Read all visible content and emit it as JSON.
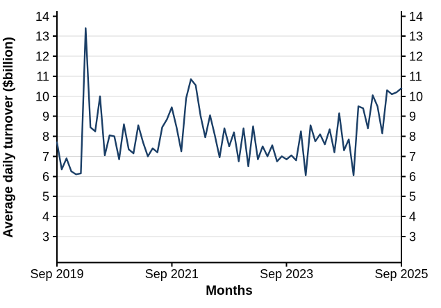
{
  "chart_data": {
    "type": "line",
    "title": "",
    "xlabel": "Months",
    "ylabel": "Average daily turnover ($billion)",
    "x_tick_labels": [
      "Sep 2019",
      "Sep 2021",
      "Sep 2023",
      "Sep 2025"
    ],
    "y_ticks": [
      3,
      4,
      5,
      6,
      7,
      8,
      9,
      10,
      11,
      12,
      13,
      14
    ],
    "ylim": [
      1.7,
      14.3
    ],
    "y_axis_mirrored": true,
    "grid": "horizontal",
    "legend_position": "none",
    "line_color": "#1a3e66",
    "grid_color": "#d9d9d9",
    "axis_color": "#000000",
    "text_color": "#000000",
    "series": [
      {
        "name": "Average daily turnover",
        "months": [
          "Sep 2019",
          "Oct 2019",
          "Nov 2019",
          "Dec 2019",
          "Jan 2020",
          "Feb 2020",
          "Mar 2020",
          "Apr 2020",
          "May 2020",
          "Jun 2020",
          "Jul 2020",
          "Aug 2020",
          "Sep 2020",
          "Oct 2020",
          "Nov 2020",
          "Dec 2020",
          "Jan 2021",
          "Feb 2021",
          "Mar 2021",
          "Apr 2021",
          "May 2021",
          "Jun 2021",
          "Jul 2021",
          "Aug 2021",
          "Sep 2021",
          "Oct 2021",
          "Nov 2021",
          "Dec 2021",
          "Jan 2022",
          "Feb 2022",
          "Mar 2022",
          "Apr 2022",
          "May 2022",
          "Jun 2022",
          "Jul 2022",
          "Aug 2022",
          "Sep 2022",
          "Oct 2022",
          "Nov 2022",
          "Dec 2022",
          "Jan 2023",
          "Feb 2023",
          "Mar 2023",
          "Apr 2023",
          "May 2023",
          "Jun 2023",
          "Jul 2023",
          "Aug 2023",
          "Sep 2023",
          "Oct 2023",
          "Nov 2023",
          "Dec 2023",
          "Jan 2024",
          "Feb 2024",
          "Mar 2024",
          "Apr 2024",
          "May 2024",
          "Jun 2024",
          "Jul 2024",
          "Aug 2024",
          "Sep 2024",
          "Oct 2024",
          "Nov 2024",
          "Dec 2024",
          "Jan 2025",
          "Feb 2025",
          "Mar 2025",
          "Apr 2025",
          "May 2025",
          "Jun 2025",
          "Jul 2025",
          "Aug 2025",
          "Sep 2025"
        ],
        "values": [
          7.7,
          6.35,
          6.9,
          6.25,
          6.1,
          6.15,
          13.4,
          8.45,
          8.25,
          10.0,
          7.05,
          8.05,
          8.0,
          6.85,
          8.6,
          7.35,
          7.15,
          8.55,
          7.7,
          7.0,
          7.4,
          7.2,
          8.45,
          8.85,
          9.45,
          8.45,
          7.25,
          9.9,
          10.85,
          10.55,
          9.05,
          7.95,
          9.05,
          8.05,
          6.95,
          8.4,
          7.5,
          8.2,
          6.75,
          8.4,
          6.5,
          8.5,
          6.85,
          7.5,
          7.0,
          7.55,
          6.75,
          7.0,
          6.85,
          7.05,
          6.8,
          8.25,
          6.05,
          8.55,
          7.75,
          8.1,
          7.6,
          8.35,
          7.2,
          9.15,
          7.3,
          7.85,
          6.05,
          9.5,
          9.4,
          8.4,
          10.05,
          9.5,
          8.15,
          10.3,
          10.1,
          10.2,
          10.4
        ]
      }
    ]
  }
}
